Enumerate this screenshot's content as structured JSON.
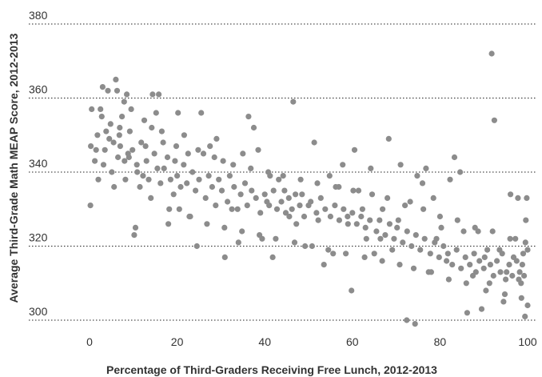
{
  "chart_data": {
    "type": "scatter",
    "title": "",
    "xlabel": "Percentage of Third-Graders Receiving Free Lunch, 2012-2013",
    "ylabel": "Average Third-Grade Math MEAP Score, 2012-2013",
    "xlim": [
      -2,
      102
    ],
    "ylim": [
      298,
      385
    ],
    "x_ticks": [
      0,
      20,
      40,
      60,
      80,
      100
    ],
    "y_ticks": [
      300,
      320,
      340,
      360,
      380
    ],
    "grid": "horizontal dotted",
    "legend": "none",
    "point_color": "#8c8c8c",
    "points": [
      [
        0.2,
        331
      ],
      [
        0.5,
        357
      ],
      [
        0.3,
        347
      ],
      [
        1.2,
        343
      ],
      [
        1.8,
        350
      ],
      [
        2.5,
        357
      ],
      [
        3.0,
        363
      ],
      [
        3.5,
        346
      ],
      [
        4.2,
        362
      ],
      [
        4.8,
        353
      ],
      [
        5.1,
        340
      ],
      [
        5.6,
        336
      ],
      [
        6.0,
        365
      ],
      [
        6.3,
        362
      ],
      [
        6.9,
        352
      ],
      [
        7.4,
        355
      ],
      [
        7.9,
        359
      ],
      [
        8.5,
        361
      ],
      [
        9.0,
        344
      ],
      [
        9.5,
        357
      ],
      [
        10.2,
        323
      ],
      [
        10.5,
        325
      ],
      [
        10.9,
        340
      ],
      [
        11.8,
        348
      ],
      [
        12.5,
        354
      ],
      [
        13.5,
        338
      ],
      [
        14.4,
        361
      ],
      [
        15.2,
        356
      ],
      [
        15.8,
        361
      ],
      [
        16.5,
        351
      ],
      [
        18.0,
        326
      ],
      [
        19.5,
        343
      ],
      [
        20.2,
        356
      ],
      [
        21.6,
        350
      ],
      [
        22.5,
        345
      ],
      [
        23.0,
        328
      ],
      [
        24.5,
        320
      ],
      [
        25.5,
        356
      ],
      [
        26.0,
        345
      ],
      [
        27.5,
        347
      ],
      [
        29.0,
        349
      ],
      [
        30.5,
        343
      ],
      [
        30.9,
        317
      ],
      [
        32.5,
        330
      ],
      [
        34.0,
        321
      ],
      [
        35.0,
        345
      ],
      [
        36.3,
        355
      ],
      [
        37.5,
        352
      ],
      [
        38.5,
        346
      ],
      [
        39.4,
        322
      ],
      [
        40.5,
        332
      ],
      [
        41.2,
        339
      ],
      [
        41.8,
        317
      ],
      [
        43.2,
        338
      ],
      [
        44.5,
        335
      ],
      [
        45.6,
        328
      ],
      [
        46.5,
        359
      ],
      [
        47.2,
        326
      ],
      [
        48.5,
        334
      ],
      [
        49.2,
        320
      ],
      [
        50.0,
        331
      ],
      [
        51.3,
        348
      ],
      [
        52.2,
        327
      ],
      [
        53.5,
        315
      ],
      [
        54.8,
        339
      ],
      [
        55.6,
        318
      ],
      [
        56.9,
        336
      ],
      [
        57.8,
        342
      ],
      [
        58.9,
        328
      ],
      [
        59.8,
        308
      ],
      [
        60.5,
        346
      ],
      [
        61.4,
        335
      ],
      [
        62.3,
        330
      ],
      [
        63.2,
        322
      ],
      [
        64.2,
        341
      ],
      [
        65.0,
        318
      ],
      [
        66.4,
        322
      ],
      [
        66.9,
        330
      ],
      [
        68.3,
        349
      ],
      [
        69.1,
        319
      ],
      [
        70.5,
        327
      ],
      [
        71.0,
        342
      ],
      [
        72.4,
        300
      ],
      [
        73.2,
        332
      ],
      [
        74.3,
        299
      ],
      [
        74.8,
        339
      ],
      [
        76.0,
        337
      ],
      [
        76.8,
        341
      ],
      [
        77.4,
        313
      ],
      [
        78.5,
        333
      ],
      [
        79.2,
        322
      ],
      [
        80.3,
        325
      ],
      [
        81.5,
        316
      ],
      [
        82.3,
        338
      ],
      [
        83.3,
        344
      ],
      [
        84.6,
        340
      ],
      [
        85.4,
        324
      ],
      [
        86.2,
        302
      ],
      [
        87.5,
        312
      ],
      [
        88.7,
        324
      ],
      [
        89.5,
        303
      ],
      [
        90.2,
        317
      ],
      [
        91.3,
        310
      ],
      [
        91.8,
        372
      ],
      [
        92.4,
        354
      ],
      [
        93.6,
        319
      ],
      [
        94.5,
        305
      ],
      [
        95.2,
        313
      ],
      [
        96.1,
        334
      ],
      [
        96.8,
        317
      ],
      [
        97.8,
        333
      ],
      [
        98.5,
        310
      ],
      [
        99.0,
        318
      ],
      [
        99.4,
        301
      ],
      [
        99.8,
        333
      ],
      [
        100.0,
        319
      ],
      [
        100.0,
        304
      ],
      [
        99.6,
        327
      ],
      [
        98.0,
        311
      ],
      [
        97.2,
        322
      ],
      [
        1.5,
        346
      ],
      [
        2.0,
        338
      ],
      [
        2.8,
        355
      ],
      [
        3.8,
        351
      ],
      [
        4.5,
        349
      ],
      [
        5.5,
        348
      ],
      [
        6.5,
        344
      ],
      [
        7.0,
        347
      ],
      [
        8.0,
        343
      ],
      [
        8.8,
        345
      ],
      [
        9.8,
        346
      ],
      [
        10.8,
        342
      ],
      [
        11.5,
        336
      ],
      [
        12.2,
        339
      ],
      [
        13.0,
        343
      ],
      [
        14.0,
        333
      ],
      [
        14.8,
        345
      ],
      [
        15.5,
        341
      ],
      [
        16.2,
        337
      ],
      [
        17.0,
        341
      ],
      [
        17.8,
        344
      ],
      [
        18.5,
        338
      ],
      [
        19.2,
        334
      ],
      [
        20.0,
        339
      ],
      [
        20.8,
        336
      ],
      [
        21.5,
        342
      ],
      [
        22.2,
        337
      ],
      [
        23.5,
        340
      ],
      [
        24.2,
        335
      ],
      [
        25.0,
        338
      ],
      [
        26.5,
        333
      ],
      [
        27.2,
        339
      ],
      [
        28.0,
        336
      ],
      [
        28.8,
        331
      ],
      [
        29.5,
        338
      ],
      [
        30.2,
        335
      ],
      [
        31.5,
        332
      ],
      [
        32.0,
        339
      ],
      [
        33.0,
        336
      ],
      [
        33.8,
        330
      ],
      [
        34.5,
        334
      ],
      [
        35.5,
        337
      ],
      [
        36.0,
        331
      ],
      [
        37.0,
        335
      ],
      [
        38.0,
        333
      ],
      [
        39.0,
        329
      ],
      [
        40.0,
        334
      ],
      [
        41.0,
        331
      ],
      [
        42.0,
        335
      ],
      [
        42.8,
        330
      ],
      [
        43.8,
        332
      ],
      [
        44.8,
        329
      ],
      [
        45.5,
        333
      ],
      [
        46.2,
        330
      ],
      [
        47.0,
        334
      ],
      [
        48.0,
        331
      ],
      [
        49.0,
        328
      ],
      [
        50.5,
        332
      ],
      [
        51.8,
        329
      ],
      [
        52.8,
        333
      ],
      [
        53.8,
        330
      ],
      [
        55.0,
        328
      ],
      [
        56.0,
        331
      ],
      [
        57.0,
        327
      ],
      [
        58.0,
        330
      ],
      [
        59.0,
        326
      ],
      [
        60.0,
        329
      ],
      [
        61.0,
        326
      ],
      [
        62.0,
        328
      ],
      [
        63.0,
        325
      ],
      [
        64.0,
        327
      ],
      [
        65.5,
        324
      ],
      [
        66.2,
        327
      ],
      [
        67.5,
        323
      ],
      [
        68.5,
        326
      ],
      [
        69.5,
        322
      ],
      [
        70.2,
        325
      ],
      [
        71.5,
        321
      ],
      [
        72.5,
        324
      ],
      [
        73.5,
        320
      ],
      [
        74.5,
        323
      ],
      [
        75.5,
        319
      ],
      [
        76.5,
        322
      ],
      [
        77.8,
        318
      ],
      [
        78.8,
        321
      ],
      [
        79.8,
        317
      ],
      [
        80.8,
        320
      ],
      [
        81.8,
        318
      ],
      [
        82.8,
        315
      ],
      [
        83.8,
        319
      ],
      [
        84.8,
        314
      ],
      [
        85.8,
        317
      ],
      [
        86.8,
        315
      ],
      [
        87.8,
        318
      ],
      [
        88.2,
        313
      ],
      [
        89.0,
        316
      ],
      [
        90.0,
        314
      ],
      [
        90.8,
        319
      ],
      [
        91.5,
        315
      ],
      [
        92.2,
        312
      ],
      [
        93.0,
        316
      ],
      [
        93.8,
        313
      ],
      [
        94.2,
        318
      ],
      [
        95.0,
        311
      ],
      [
        95.8,
        315
      ],
      [
        96.5,
        312
      ],
      [
        97.5,
        316
      ],
      [
        98.2,
        313
      ],
      [
        98.8,
        315
      ],
      [
        99.2,
        312
      ],
      [
        3.2,
        342
      ],
      [
        6.8,
        350
      ],
      [
        9.2,
        351
      ],
      [
        12.8,
        347
      ],
      [
        16.8,
        348
      ],
      [
        19.8,
        347
      ],
      [
        24.8,
        346
      ],
      [
        28.5,
        344
      ],
      [
        32.8,
        342
      ],
      [
        36.8,
        341
      ],
      [
        40.8,
        340
      ],
      [
        44.2,
        339
      ],
      [
        48.2,
        338
      ],
      [
        52.0,
        337
      ],
      [
        56.2,
        336
      ],
      [
        60.2,
        335
      ],
      [
        64.5,
        334
      ],
      [
        68.0,
        333
      ],
      [
        72.0,
        331
      ],
      [
        76.2,
        330
      ],
      [
        80.0,
        328
      ],
      [
        84.0,
        327
      ],
      [
        88.0,
        325
      ],
      [
        92.0,
        324
      ],
      [
        96.0,
        322
      ],
      [
        99.5,
        321
      ],
      [
        18.2,
        330
      ],
      [
        22.8,
        328
      ],
      [
        26.8,
        326
      ],
      [
        30.8,
        325
      ],
      [
        34.8,
        324
      ],
      [
        38.8,
        323
      ],
      [
        42.5,
        322
      ],
      [
        46.8,
        321
      ],
      [
        50.8,
        320
      ],
      [
        54.5,
        319
      ],
      [
        58.5,
        318
      ],
      [
        62.8,
        317
      ],
      [
        66.8,
        316
      ],
      [
        70.8,
        315
      ],
      [
        74.0,
        314
      ],
      [
        78.0,
        313
      ],
      [
        82.0,
        311
      ],
      [
        86.0,
        310
      ],
      [
        90.5,
        308
      ],
      [
        94.8,
        307
      ],
      [
        98.6,
        306
      ],
      [
        8.2,
        338
      ],
      [
        14.2,
        352
      ],
      [
        20.5,
        330
      ]
    ]
  }
}
